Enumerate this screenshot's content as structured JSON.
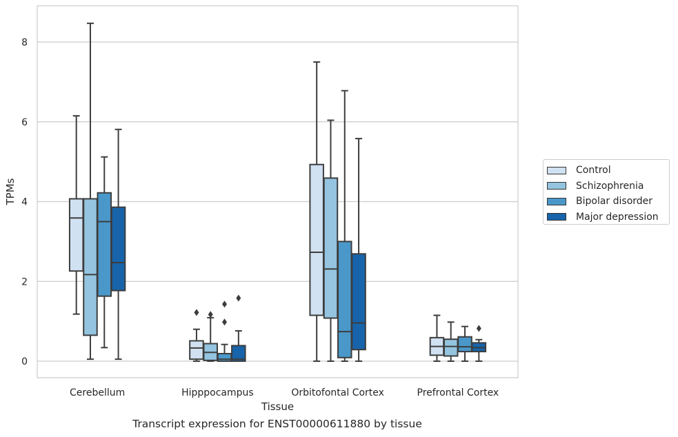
{
  "chart_data": {
    "type": "box",
    "xlabel": "Tissue",
    "ylabel": "TPMs",
    "ylim": [
      -0.4,
      8.9
    ],
    "yticks": [
      0,
      2,
      4,
      6,
      8
    ],
    "grid": "horizontal",
    "legend_position": "right",
    "caption": "Transcript expression for ENST00000611880 by tissue",
    "categories": [
      "Cerebellum",
      "Hipppocampus",
      "Orbitofontal Cortex",
      "Prefrontal Cortex"
    ],
    "series": [
      {
        "name": "Control",
        "color": "#d0e1f2",
        "boxes": [
          {
            "whislo": 1.18,
            "q1": 2.26,
            "med": 3.59,
            "q3": 4.07,
            "whishi": 6.15,
            "fliers": []
          },
          {
            "whislo": 0.0,
            "q1": 0.05,
            "med": 0.33,
            "q3": 0.51,
            "whishi": 0.8,
            "fliers": [
              1.22
            ]
          },
          {
            "whislo": 0.0,
            "q1": 1.15,
            "med": 2.73,
            "q3": 4.93,
            "whishi": 7.5,
            "fliers": []
          },
          {
            "whislo": 0.0,
            "q1": 0.15,
            "med": 0.37,
            "q3": 0.59,
            "whishi": 1.15,
            "fliers": []
          }
        ]
      },
      {
        "name": "Schizophrenia",
        "color": "#94c4df",
        "boxes": [
          {
            "whislo": 0.05,
            "q1": 0.65,
            "med": 2.17,
            "q3": 4.07,
            "whishi": 8.47,
            "fliers": []
          },
          {
            "whislo": 0.0,
            "q1": 0.02,
            "med": 0.22,
            "q3": 0.44,
            "whishi": 1.09,
            "fliers": [
              1.17
            ]
          },
          {
            "whislo": 0.0,
            "q1": 1.08,
            "med": 2.31,
            "q3": 4.59,
            "whishi": 6.04,
            "fliers": []
          },
          {
            "whislo": 0.0,
            "q1": 0.13,
            "med": 0.37,
            "q3": 0.55,
            "whishi": 0.98,
            "fliers": []
          }
        ]
      },
      {
        "name": "Bipolar disorder",
        "color": "#4a98c9",
        "boxes": [
          {
            "whislo": 0.34,
            "q1": 1.63,
            "med": 3.5,
            "q3": 4.22,
            "whishi": 5.12,
            "fliers": []
          },
          {
            "whislo": 0.0,
            "q1": 0.0,
            "med": 0.05,
            "q3": 0.19,
            "whishi": 0.42,
            "fliers": [
              0.98,
              1.43
            ]
          },
          {
            "whislo": 0.0,
            "q1": 0.09,
            "med": 0.74,
            "q3": 3.0,
            "whishi": 6.78,
            "fliers": []
          },
          {
            "whislo": 0.0,
            "q1": 0.24,
            "med": 0.36,
            "q3": 0.61,
            "whishi": 0.87,
            "fliers": []
          }
        ]
      },
      {
        "name": "Major depression",
        "color": "#1764ab",
        "boxes": [
          {
            "whislo": 0.05,
            "q1": 1.77,
            "med": 2.47,
            "q3": 3.86,
            "whishi": 5.81,
            "fliers": []
          },
          {
            "whislo": 0.0,
            "q1": 0.0,
            "med": 0.05,
            "q3": 0.39,
            "whishi": 0.76,
            "fliers": [
              1.58
            ]
          },
          {
            "whislo": 0.0,
            "q1": 0.29,
            "med": 0.96,
            "q3": 2.69,
            "whishi": 5.58,
            "fliers": []
          },
          {
            "whislo": 0.0,
            "q1": 0.24,
            "med": 0.34,
            "q3": 0.46,
            "whishi": 0.54,
            "fliers": [
              0.82
            ]
          }
        ]
      }
    ]
  }
}
